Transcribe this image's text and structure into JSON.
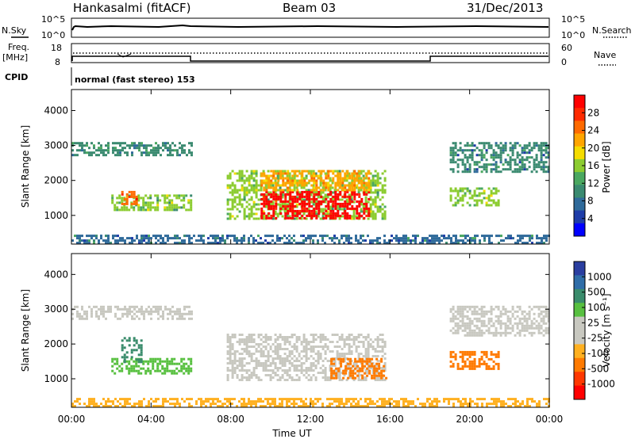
{
  "header": {
    "station": "Hankasalmi (fitACF)",
    "beam": "Beam 03",
    "date": "31/Dec/2013"
  },
  "top_panels": {
    "nsky_label": "N.Sky",
    "nsearch_label": "N.Search",
    "nsky_ticks": [
      "10^5",
      "10^0"
    ],
    "nsearch_ticks": [
      "10^5",
      "10^0"
    ],
    "freq_label_line1": "Freq.",
    "freq_label_line2": "[MHz]",
    "freq_ticks": [
      "18",
      "8"
    ],
    "nave_label": "Nave",
    "nave_ticks": [
      "60",
      "0"
    ],
    "cpid_label": "CPID",
    "cpid_text": "normal (fast stereo) 153"
  },
  "colorbars": {
    "power": {
      "label": "Power [dB]",
      "ticks": [
        "28",
        "24",
        "20",
        "16",
        "12",
        "8",
        "4"
      ],
      "colors": [
        "#0000ff",
        "#1e3ca8",
        "#2f6a9a",
        "#3a8a70",
        "#4aa860",
        "#8ccc30",
        "#f5dc00",
        "#ffa500",
        "#ff6a00",
        "#ff2a00",
        "#ff0000"
      ]
    },
    "velocity": {
      "label": "Velocity [m s⁻¹]",
      "ticks": [
        "1000",
        "500",
        "100",
        "25",
        "-25",
        "-100",
        "-500",
        "-1000"
      ],
      "colors": [
        "#2a3ea0",
        "#2f6da8",
        "#3a8c6c",
        "#58c040",
        "#c8c8c0",
        "#c8c8c0",
        "#ffb020",
        "#ff7a00",
        "#ff3800",
        "#ff0000"
      ]
    }
  },
  "chart_data": [
    {
      "type": "heatmap",
      "title": "Power",
      "xlabel": "Time UT",
      "ylabel": "Slant Range [km]",
      "x_ticks": [
        "00:00",
        "04:00",
        "08:00",
        "12:00",
        "16:00",
        "20:00",
        "00:00"
      ],
      "y_ticks": [
        "1000",
        "2000",
        "3000",
        "4000"
      ],
      "xlim": [
        0,
        24
      ],
      "ylim": [
        180,
        4600
      ],
      "regions": [
        {
          "t0": 0.0,
          "t1": 6.0,
          "r0": 2750,
          "r1": 3100,
          "db": 10
        },
        {
          "t0": 2.0,
          "t1": 6.0,
          "r0": 1150,
          "r1": 1600,
          "db": 14
        },
        {
          "t0": 2.5,
          "t1": 3.3,
          "r0": 1300,
          "r1": 1700,
          "db": 24
        },
        {
          "t0": 7.8,
          "t1": 15.8,
          "r0": 900,
          "r1": 2300,
          "db": 14
        },
        {
          "t0": 9.5,
          "t1": 15.0,
          "r0": 950,
          "r1": 1700,
          "db": 28
        },
        {
          "t0": 9.5,
          "t1": 15.0,
          "r0": 1700,
          "r1": 2300,
          "db": 20
        },
        {
          "t0": 19.0,
          "t1": 24.0,
          "r0": 2250,
          "r1": 3100,
          "db": 9
        },
        {
          "t0": 19.0,
          "t1": 21.5,
          "r0": 1300,
          "r1": 1800,
          "db": 14
        },
        {
          "t0": 0.0,
          "t1": 24.0,
          "r0": 180,
          "r1": 450,
          "db": 8
        }
      ]
    },
    {
      "type": "heatmap",
      "title": "Velocity",
      "xlabel": "Time UT",
      "ylabel": "Slant Range [km]",
      "x_ticks": [
        "00:00",
        "04:00",
        "08:00",
        "12:00",
        "16:00",
        "20:00",
        "00:00"
      ],
      "y_ticks": [
        "1000",
        "2000",
        "3000",
        "4000"
      ],
      "xlim": [
        0,
        24
      ],
      "ylim": [
        180,
        4600
      ],
      "regions": [
        {
          "t0": 0.0,
          "t1": 6.0,
          "r0": 2750,
          "r1": 3100,
          "v": 0
        },
        {
          "t0": 2.0,
          "t1": 6.0,
          "r0": 1150,
          "r1": 1600,
          "v": 80
        },
        {
          "t0": 2.5,
          "t1": 3.5,
          "r0": 1500,
          "r1": 2200,
          "v": 150
        },
        {
          "t0": 7.8,
          "t1": 15.8,
          "r0": 1000,
          "r1": 2300,
          "v": 0
        },
        {
          "t0": 13.0,
          "t1": 15.8,
          "r0": 1000,
          "r1": 1600,
          "v": -150
        },
        {
          "t0": 19.0,
          "t1": 21.5,
          "r0": 1300,
          "r1": 1800,
          "v": -200
        },
        {
          "t0": 19.0,
          "t1": 24.0,
          "r0": 2250,
          "r1": 3100,
          "v": 0
        },
        {
          "t0": 0.0,
          "t1": 24.0,
          "r0": 180,
          "r1": 450,
          "v": -80
        }
      ]
    }
  ]
}
